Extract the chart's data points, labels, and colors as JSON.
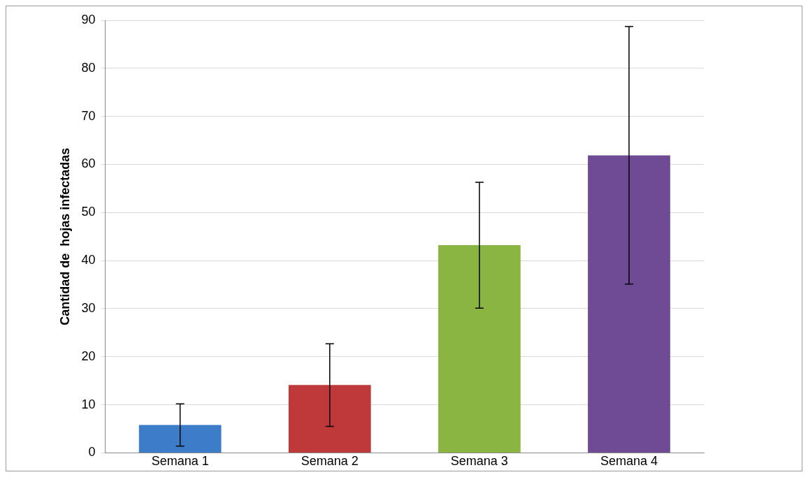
{
  "chart_data": {
    "type": "bar",
    "ylabel": "Cantidad de  hojas infectadas",
    "categories": [
      "Semana 1",
      "Semana 2",
      "Semana 3",
      "Semana 4"
    ],
    "values": [
      5.8,
      14.1,
      43.2,
      61.9
    ],
    "colors": [
      "#3d7cc9",
      "#c0393a",
      "#8ab542",
      "#6e4b94"
    ],
    "errors": [
      4.4,
      8.6,
      13.1,
      26.8
    ],
    "ylim": [
      0,
      90
    ],
    "yticks": [
      0,
      10,
      20,
      30,
      40,
      50,
      60,
      70,
      80,
      90
    ],
    "grid": "y",
    "legend": false
  }
}
